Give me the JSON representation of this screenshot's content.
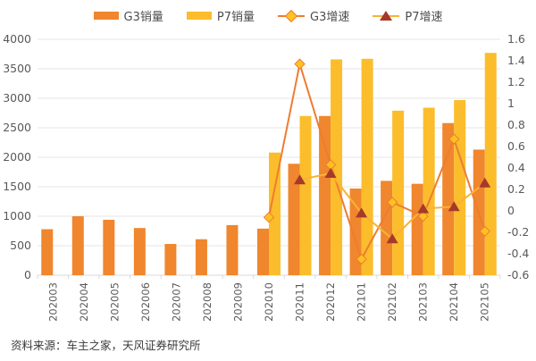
{
  "legend": [
    {
      "label": "G3销量",
      "type": "bar",
      "color": "#F0862D"
    },
    {
      "label": "P7销量",
      "type": "bar",
      "color": "#FBBD2B"
    },
    {
      "label": "G3增速",
      "type": "line",
      "line_color": "#ED7D31",
      "marker": "diamond",
      "marker_color": "#FFC222"
    },
    {
      "label": "P7增速",
      "type": "line",
      "line_color": "#F9B234",
      "marker": "triangle",
      "marker_color": "#A5392B"
    }
  ],
  "chart_data": {
    "type": "bar",
    "subtype": "grouped bars with two growth-rate lines on secondary axis",
    "categories": [
      "202003",
      "202004",
      "202005",
      "202006",
      "202007",
      "202008",
      "202009",
      "202010",
      "202011",
      "202012",
      "202101",
      "202102",
      "202103",
      "202104",
      "202105"
    ],
    "series": [
      {
        "name": "G3销量",
        "type": "bar",
        "axis": "left",
        "color": "#F0862D",
        "values": [
          780,
          1000,
          940,
          800,
          530,
          610,
          850,
          790,
          1890,
          2700,
          1470,
          1600,
          1550,
          2580,
          2130
        ]
      },
      {
        "name": "P7销量",
        "type": "bar",
        "axis": "left",
        "color": "#FBBD2B",
        "values": [
          null,
          null,
          null,
          null,
          null,
          null,
          null,
          2080,
          2700,
          3660,
          3670,
          2790,
          2840,
          2970,
          3770
        ]
      },
      {
        "name": "G3增速",
        "type": "line",
        "axis": "right",
        "color": "#ED7D31",
        "marker": "diamond",
        "marker_color": "#FFC222",
        "values": [
          null,
          null,
          null,
          null,
          null,
          null,
          null,
          -0.06,
          1.37,
          0.43,
          -0.45,
          0.08,
          -0.05,
          0.67,
          -0.19
        ]
      },
      {
        "name": "P7增速",
        "type": "line",
        "axis": "right",
        "color": "#F9B234",
        "marker": "triangle",
        "marker_color": "#A5392B",
        "values": [
          null,
          null,
          null,
          null,
          null,
          null,
          null,
          null,
          0.29,
          0.35,
          -0.02,
          -0.26,
          0.02,
          0.04,
          0.26
        ]
      }
    ],
    "left_axis": {
      "min": 0,
      "max": 4000,
      "ticks": [
        "0",
        "500",
        "1000",
        "1500",
        "2000",
        "2500",
        "3000",
        "3500",
        "4000"
      ]
    },
    "right_axis": {
      "min": -0.6,
      "max": 1.6,
      "ticks": [
        "-0.6",
        "-0.4",
        "-0.2",
        "0",
        "0.2",
        "0.4",
        "0.6",
        "0.8",
        "1",
        "1.2",
        "1.4",
        "1.6"
      ]
    },
    "grid": true,
    "legend_position": "top",
    "title": "",
    "xlabel": "",
    "ylabel": ""
  },
  "colors": {
    "grid": "#e4e4e4",
    "axis_line": "#d9d9d9",
    "tick_text": "#595959",
    "legend_text": "#4d4d4d",
    "footer_text": "#3a3a3a"
  },
  "footer": {
    "source_text": "资料来源：车主之家，天风证券研究所"
  }
}
